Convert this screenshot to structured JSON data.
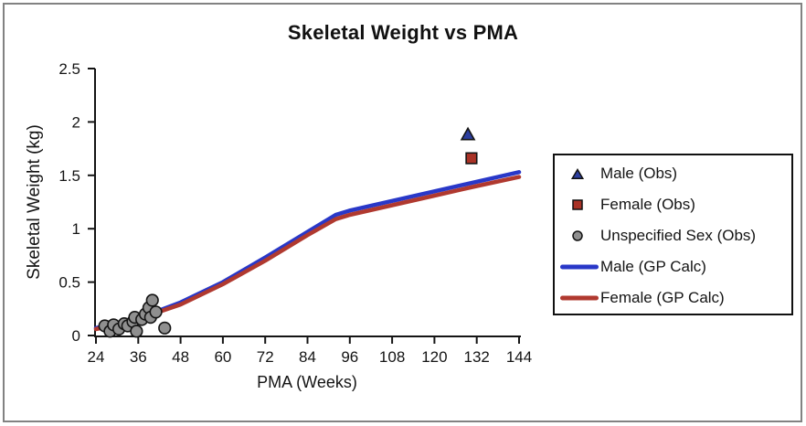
{
  "chart_data": {
    "type": "scatter+line",
    "title": "Skeletal Weight vs PMA",
    "xlabel": "PMA (Weeks)",
    "ylabel": "Skeletal Weight (kg)",
    "xlim": [
      24,
      144
    ],
    "ylim": [
      0,
      2.5
    ],
    "x_ticks": [
      24,
      36,
      48,
      60,
      72,
      84,
      96,
      108,
      120,
      132,
      144
    ],
    "y_ticks": [
      0,
      0.5,
      1,
      1.5,
      2,
      2.5
    ],
    "y_tick_labels": [
      "0",
      "0.5",
      "1",
      "1.5",
      "2",
      "2.5"
    ],
    "grid": false,
    "legend_position": "right",
    "series": [
      {
        "name": "Male (GP Calc)",
        "type": "line",
        "color": "#2938C8",
        "points": [
          [
            24,
            0.07
          ],
          [
            32,
            0.13
          ],
          [
            40,
            0.21
          ],
          [
            48,
            0.31
          ],
          [
            60,
            0.5
          ],
          [
            72,
            0.73
          ],
          [
            84,
            0.97
          ],
          [
            92,
            1.13
          ],
          [
            96,
            1.17
          ],
          [
            108,
            1.26
          ],
          [
            120,
            1.35
          ],
          [
            132,
            1.44
          ],
          [
            144,
            1.53
          ]
        ]
      },
      {
        "name": "Female (GP Calc)",
        "type": "line",
        "color": "#B0392F",
        "points": [
          [
            24,
            0.06
          ],
          [
            32,
            0.12
          ],
          [
            40,
            0.2
          ],
          [
            48,
            0.29
          ],
          [
            60,
            0.48
          ],
          [
            72,
            0.7
          ],
          [
            84,
            0.94
          ],
          [
            92,
            1.09
          ],
          [
            96,
            1.13
          ],
          [
            108,
            1.22
          ],
          [
            120,
            1.31
          ],
          [
            132,
            1.4
          ],
          [
            144,
            1.485
          ]
        ]
      },
      {
        "name": "Unspecified Sex (Obs)",
        "type": "scatter",
        "marker": "circle",
        "color": "#8F8F8F",
        "points": [
          [
            26.5,
            0.09
          ],
          [
            28,
            0.04
          ],
          [
            29,
            0.1
          ],
          [
            30.5,
            0.06
          ],
          [
            32,
            0.11
          ],
          [
            33,
            0.09
          ],
          [
            34.5,
            0.13
          ],
          [
            35,
            0.17
          ],
          [
            35.5,
            0.04
          ],
          [
            37,
            0.15
          ],
          [
            38,
            0.2
          ],
          [
            39,
            0.26
          ],
          [
            39.5,
            0.17
          ],
          [
            40,
            0.33
          ],
          [
            41,
            0.22
          ],
          [
            43.5,
            0.07
          ]
        ]
      },
      {
        "name": "Male (Obs)",
        "type": "scatter",
        "marker": "triangle",
        "color": "#2C3E9E",
        "points": [
          [
            129.5,
            1.88
          ]
        ]
      },
      {
        "name": "Female (Obs)",
        "type": "scatter",
        "marker": "square",
        "color": "#A93226",
        "points": [
          [
            130.5,
            1.66
          ]
        ]
      }
    ]
  },
  "legend": {
    "items": [
      {
        "label": "Male (Obs)",
        "marker": "triangle",
        "color": "#2C3E9E"
      },
      {
        "label": "Female (Obs)",
        "marker": "square",
        "color": "#A93226"
      },
      {
        "label": "Unspecified Sex (Obs)",
        "marker": "circle",
        "color": "#8F8F8F"
      },
      {
        "label": "Male (GP Calc)",
        "marker": "line",
        "color": "#2938C8"
      },
      {
        "label": "Female (GP Calc)",
        "marker": "line",
        "color": "#B0392F"
      }
    ]
  }
}
